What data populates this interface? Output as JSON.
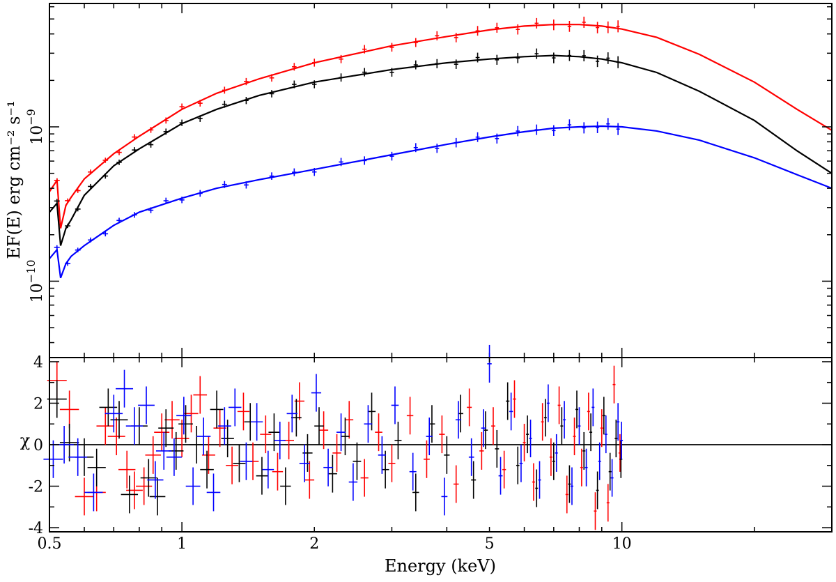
{
  "chart_data": [
    {
      "panel": "spectrum",
      "type": "line",
      "xscale": "log",
      "yscale": "log",
      "xlim": [
        0.5,
        30
      ],
      "ylim": [
        3.2e-11,
        6.3e-09
      ],
      "ylabel": "EF(E) erg cm⁻² s⁻¹",
      "yticks": [
        {
          "value": 1e-09,
          "label_base": "10",
          "label_exp": "−9"
        },
        {
          "value": 1e-10,
          "label_base": "10",
          "label_exp": "−10"
        }
      ],
      "series": [
        {
          "name": "red spectrum",
          "color": "#ff0000",
          "model": {
            "x": [
              0.5,
              0.52,
              0.53,
              0.545,
              0.56,
              0.6,
              0.7,
              0.8,
              1,
              1.2,
              1.5,
              2,
              3,
              4,
              5,
              6,
              7,
              8,
              9,
              10,
              12,
              15,
              20,
              25,
              30
            ],
            "y": [
              3.8e-10,
              4.5e-10,
              2.2e-10,
              3.1e-10,
              3.5e-10,
              4.6e-10,
              6.7e-10,
              8.7e-10,
              1.3e-09,
              1.65e-09,
              2.05e-09,
              2.6e-09,
              3.35e-09,
              3.85e-09,
              4.25e-09,
              4.5e-09,
              4.6e-09,
              4.6e-09,
              4.5e-09,
              4.3e-09,
              3.8e-09,
              2.95e-09,
              1.95e-09,
              1.3e-09,
              9.5e-10
            ]
          },
          "data_x": [
            0.52,
            0.55,
            0.58,
            0.62,
            0.67,
            0.72,
            0.78,
            0.85,
            0.92,
            1.0,
            1.1,
            1.25,
            1.4,
            1.6,
            1.8,
            2.0,
            2.3,
            2.6,
            3.0,
            3.4,
            3.8,
            4.2,
            4.7,
            5.2,
            5.8,
            6.4,
            7.0,
            7.6,
            8.2,
            8.8,
            9.3,
            9.8
          ],
          "residuals": [
            {
              "x": 0.52,
              "y": 3.1
            },
            {
              "x": 0.555,
              "y": 1.7
            },
            {
              "x": 0.6,
              "y": -2.5
            },
            {
              "x": 0.64,
              "y": -2.3
            },
            {
              "x": 0.67,
              "y": 0.9
            },
            {
              "x": 0.71,
              "y": 0.4
            },
            {
              "x": 0.75,
              "y": -1.2
            },
            {
              "x": 0.78,
              "y": -2.2
            },
            {
              "x": 0.82,
              "y": -2.0
            },
            {
              "x": 0.86,
              "y": -0.5
            },
            {
              "x": 0.9,
              "y": 0.6
            },
            {
              "x": 0.95,
              "y": 1.2
            },
            {
              "x": 1.0,
              "y": 0.3
            },
            {
              "x": 1.05,
              "y": 1.5
            },
            {
              "x": 1.1,
              "y": 2.4
            },
            {
              "x": 1.15,
              "y": -0.5
            },
            {
              "x": 1.22,
              "y": 0.8
            },
            {
              "x": 1.3,
              "y": -1.0
            },
            {
              "x": 1.38,
              "y": 1.6
            },
            {
              "x": 1.45,
              "y": -0.8
            },
            {
              "x": 1.55,
              "y": 0.5
            },
            {
              "x": 1.65,
              "y": -1.3
            },
            {
              "x": 1.75,
              "y": 0.2
            },
            {
              "x": 1.85,
              "y": 2.1
            },
            {
              "x": 1.95,
              "y": -1.7
            },
            {
              "x": 2.1,
              "y": 0.7
            },
            {
              "x": 2.25,
              "y": -0.4
            },
            {
              "x": 2.4,
              "y": 1.2
            },
            {
              "x": 2.6,
              "y": -1.6
            },
            {
              "x": 2.8,
              "y": 0.6
            },
            {
              "x": 3.0,
              "y": -0.9
            },
            {
              "x": 3.3,
              "y": 1.4
            },
            {
              "x": 3.6,
              "y": -0.7
            },
            {
              "x": 3.9,
              "y": 0.5
            },
            {
              "x": 4.2,
              "y": -1.9
            },
            {
              "x": 4.5,
              "y": 1.8
            },
            {
              "x": 4.8,
              "y": -0.3
            },
            {
              "x": 5.1,
              "y": 0.9
            },
            {
              "x": 5.4,
              "y": -1.2
            },
            {
              "x": 5.7,
              "y": 2.2
            },
            {
              "x": 6.0,
              "y": 0.1
            },
            {
              "x": 6.3,
              "y": -1.8
            },
            {
              "x": 6.6,
              "y": 1.1
            },
            {
              "x": 6.9,
              "y": -0.6
            },
            {
              "x": 7.2,
              "y": 1.9
            },
            {
              "x": 7.5,
              "y": -2.4
            },
            {
              "x": 7.8,
              "y": 0.4
            },
            {
              "x": 8.1,
              "y": -1.1
            },
            {
              "x": 8.4,
              "y": 1.6
            },
            {
              "x": 8.7,
              "y": -3.2
            },
            {
              "x": 9.0,
              "y": 0.8
            },
            {
              "x": 9.3,
              "y": -2.8
            },
            {
              "x": 9.6,
              "y": 2.9
            },
            {
              "x": 9.9,
              "y": -0.4
            }
          ]
        },
        {
          "name": "black spectrum",
          "color": "#000000",
          "model": {
            "x": [
              0.5,
              0.52,
              0.53,
              0.545,
              0.56,
              0.6,
              0.7,
              0.8,
              1,
              1.2,
              1.5,
              2,
              3,
              4,
              5,
              6,
              7,
              8,
              9,
              10,
              12,
              15,
              20,
              25,
              30
            ],
            "y": [
              2.8e-10,
              3.2e-10,
              1.7e-10,
              2.2e-10,
              2.5e-10,
              3.6e-10,
              5.6e-10,
              7.2e-10,
              1.05e-09,
              1.3e-09,
              1.6e-09,
              1.95e-09,
              2.35e-09,
              2.6e-09,
              2.75e-09,
              2.85e-09,
              2.9e-09,
              2.85e-09,
              2.75e-09,
              2.6e-09,
              2.25e-09,
              1.7e-09,
              1.1e-09,
              7e-10,
              5e-10
            ]
          },
          "data_x": [
            0.52,
            0.55,
            0.58,
            0.62,
            0.67,
            0.72,
            0.78,
            0.85,
            0.92,
            1.0,
            1.1,
            1.25,
            1.4,
            1.6,
            1.8,
            2.0,
            2.3,
            2.6,
            3.0,
            3.4,
            3.8,
            4.2,
            4.7,
            5.2,
            5.8,
            6.4,
            7.0,
            7.6,
            8.2,
            8.8,
            9.3,
            9.8
          ],
          "residuals": [
            {
              "x": 0.52,
              "y": 2.2
            },
            {
              "x": 0.555,
              "y": 0.1
            },
            {
              "x": 0.6,
              "y": -0.6
            },
            {
              "x": 0.64,
              "y": -1.1
            },
            {
              "x": 0.68,
              "y": 1.8
            },
            {
              "x": 0.72,
              "y": 1.2
            },
            {
              "x": 0.76,
              "y": -2.4
            },
            {
              "x": 0.8,
              "y": 0.9
            },
            {
              "x": 0.84,
              "y": -1.6
            },
            {
              "x": 0.88,
              "y": -2.5
            },
            {
              "x": 0.92,
              "y": 0.8
            },
            {
              "x": 0.97,
              "y": -0.3
            },
            {
              "x": 1.02,
              "y": 1.0
            },
            {
              "x": 1.08,
              "y": 0.0
            },
            {
              "x": 1.14,
              "y": -1.2
            },
            {
              "x": 1.2,
              "y": 1.7
            },
            {
              "x": 1.27,
              "y": 0.3
            },
            {
              "x": 1.35,
              "y": -0.9
            },
            {
              "x": 1.43,
              "y": 1.1
            },
            {
              "x": 1.52,
              "y": -1.5
            },
            {
              "x": 1.62,
              "y": 0.6
            },
            {
              "x": 1.72,
              "y": -2.0
            },
            {
              "x": 1.82,
              "y": 1.3
            },
            {
              "x": 1.93,
              "y": -0.4
            },
            {
              "x": 2.05,
              "y": 0.9
            },
            {
              "x": 2.2,
              "y": -1.4
            },
            {
              "x": 2.35,
              "y": 0.4
            },
            {
              "x": 2.5,
              "y": -0.8
            },
            {
              "x": 2.7,
              "y": 1.6
            },
            {
              "x": 2.9,
              "y": -1.2
            },
            {
              "x": 3.1,
              "y": 0.2
            },
            {
              "x": 3.4,
              "y": -2.3
            },
            {
              "x": 3.7,
              "y": 1.0
            },
            {
              "x": 4.0,
              "y": -0.5
            },
            {
              "x": 4.3,
              "y": 1.5
            },
            {
              "x": 4.6,
              "y": -1.7
            },
            {
              "x": 4.9,
              "y": 0.7
            },
            {
              "x": 5.2,
              "y": -0.2
            },
            {
              "x": 5.5,
              "y": 2.1
            },
            {
              "x": 5.8,
              "y": -1.0
            },
            {
              "x": 6.1,
              "y": 0.5
            },
            {
              "x": 6.4,
              "y": -2.1
            },
            {
              "x": 6.7,
              "y": 1.3
            },
            {
              "x": 7.0,
              "y": -0.8
            },
            {
              "x": 7.3,
              "y": 0.9
            },
            {
              "x": 7.6,
              "y": -1.9
            },
            {
              "x": 7.9,
              "y": 1.7
            },
            {
              "x": 8.2,
              "y": -0.3
            },
            {
              "x": 8.5,
              "y": 0.6
            },
            {
              "x": 8.8,
              "y": -2.2
            },
            {
              "x": 9.1,
              "y": 1.4
            },
            {
              "x": 9.4,
              "y": -1.3
            },
            {
              "x": 9.7,
              "y": 0.3
            },
            {
              "x": 9.95,
              "y": -0.7
            }
          ]
        },
        {
          "name": "blue spectrum",
          "color": "#0000ff",
          "model": {
            "x": [
              0.5,
              0.52,
              0.53,
              0.545,
              0.56,
              0.6,
              0.7,
              0.8,
              1,
              1.2,
              1.5,
              2,
              3,
              4,
              5,
              6,
              7,
              8,
              9,
              10,
              12,
              15,
              20,
              25,
              30
            ],
            "y": [
              1.4e-10,
              1.6e-10,
              1.05e-10,
              1.3e-10,
              1.45e-10,
              1.7e-10,
              2.3e-10,
              2.8e-10,
              3.45e-10,
              4e-10,
              4.55e-10,
              5.3e-10,
              6.6e-10,
              7.7e-10,
              8.6e-10,
              9.3e-10,
              9.8e-10,
              1e-09,
              1.01e-09,
              1e-09,
              9.4e-10,
              8.2e-10,
              6.3e-10,
              4.9e-10,
              4e-10
            ]
          },
          "data_x": [
            0.52,
            0.55,
            0.58,
            0.62,
            0.67,
            0.72,
            0.78,
            0.85,
            0.92,
            1.0,
            1.1,
            1.25,
            1.4,
            1.6,
            1.8,
            2.0,
            2.3,
            2.6,
            3.0,
            3.4,
            3.8,
            4.2,
            4.7,
            5.2,
            5.8,
            6.4,
            7.0,
            7.6,
            8.2,
            8.8,
            9.3,
            9.8
          ],
          "residuals": [
            {
              "x": 0.51,
              "y": -0.7
            },
            {
              "x": 0.54,
              "y": 0.0
            },
            {
              "x": 0.58,
              "y": -0.6
            },
            {
              "x": 0.63,
              "y": -2.3
            },
            {
              "x": 0.7,
              "y": 1.5
            },
            {
              "x": 0.74,
              "y": 2.7
            },
            {
              "x": 0.78,
              "y": 0.9
            },
            {
              "x": 0.83,
              "y": 1.9
            },
            {
              "x": 0.87,
              "y": -1.7
            },
            {
              "x": 0.91,
              "y": -0.3
            },
            {
              "x": 0.96,
              "y": -0.6
            },
            {
              "x": 1.01,
              "y": 1.4
            },
            {
              "x": 1.06,
              "y": -2.0
            },
            {
              "x": 1.12,
              "y": 0.4
            },
            {
              "x": 1.18,
              "y": -2.3
            },
            {
              "x": 1.25,
              "y": 0.9
            },
            {
              "x": 1.32,
              "y": 1.8
            },
            {
              "x": 1.4,
              "y": -0.8
            },
            {
              "x": 1.48,
              "y": 1.1
            },
            {
              "x": 1.57,
              "y": -1.2
            },
            {
              "x": 1.67,
              "y": 0.2
            },
            {
              "x": 1.78,
              "y": 1.5
            },
            {
              "x": 1.9,
              "y": -0.9
            },
            {
              "x": 2.02,
              "y": 2.5
            },
            {
              "x": 2.15,
              "y": -1.1
            },
            {
              "x": 2.3,
              "y": 0.6
            },
            {
              "x": 2.45,
              "y": -1.8
            },
            {
              "x": 2.65,
              "y": 1.0
            },
            {
              "x": 2.85,
              "y": -0.5
            },
            {
              "x": 3.05,
              "y": 1.9
            },
            {
              "x": 3.35,
              "y": -1.3
            },
            {
              "x": 3.65,
              "y": 0.4
            },
            {
              "x": 3.95,
              "y": -2.5
            },
            {
              "x": 4.25,
              "y": 1.2
            },
            {
              "x": 4.55,
              "y": -0.6
            },
            {
              "x": 4.85,
              "y": 0.8
            },
            {
              "x": 5.0,
              "y": 3.9
            },
            {
              "x": 5.3,
              "y": -1.5
            },
            {
              "x": 5.6,
              "y": 1.6
            },
            {
              "x": 5.9,
              "y": -0.9
            },
            {
              "x": 6.2,
              "y": 0.3
            },
            {
              "x": 6.5,
              "y": -1.7
            },
            {
              "x": 6.8,
              "y": 2.0
            },
            {
              "x": 7.1,
              "y": -0.4
            },
            {
              "x": 7.4,
              "y": 1.2
            },
            {
              "x": 7.7,
              "y": -2.0
            },
            {
              "x": 8.0,
              "y": 0.9
            },
            {
              "x": 8.3,
              "y": -1.1
            },
            {
              "x": 8.6,
              "y": 1.8
            },
            {
              "x": 8.9,
              "y": -0.8
            },
            {
              "x": 9.2,
              "y": 0.5
            },
            {
              "x": 9.5,
              "y": -1.6
            },
            {
              "x": 9.8,
              "y": 1.1
            },
            {
              "x": 9.98,
              "y": 0.2
            }
          ]
        }
      ]
    },
    {
      "panel": "residuals",
      "type": "scatter",
      "xscale": "log",
      "xlim": [
        0.5,
        30
      ],
      "ylim": [
        -4.2,
        4.2
      ],
      "ylabel": "χ",
      "xlabel": "Energy (keV)",
      "xticks": [
        {
          "value": 0.5,
          "label": "0.5"
        },
        {
          "value": 1,
          "label": "1"
        },
        {
          "value": 2,
          "label": "2"
        },
        {
          "value": 5,
          "label": "5"
        },
        {
          "value": 10,
          "label": "10"
        }
      ],
      "yticks": [
        {
          "value": 4,
          "label": "4"
        },
        {
          "value": 2,
          "label": "2"
        },
        {
          "value": 0,
          "label": "0"
        },
        {
          "value": -2,
          "label": "-2"
        },
        {
          "value": -4,
          "label": "-4"
        }
      ],
      "zero_line": 0
    }
  ]
}
